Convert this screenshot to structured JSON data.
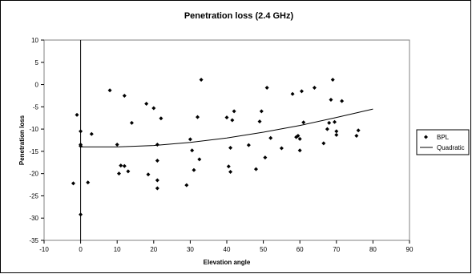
{
  "chart_data": {
    "type": "scatter",
    "title": "Penetration loss (2.4 GHz)",
    "xlabel": "Elevation angle",
    "ylabel": "Penetration loss",
    "xlim": [
      -10,
      90
    ],
    "ylim": [
      -35,
      10
    ],
    "xticks": [
      -10,
      0,
      10,
      20,
      30,
      40,
      50,
      60,
      70,
      80,
      90
    ],
    "yticks": [
      -35,
      -30,
      -25,
      -20,
      -15,
      -10,
      -5,
      0,
      5,
      10
    ],
    "grid": false,
    "legend_position": "right",
    "series": [
      {
        "name": "BPL",
        "kind": "markers",
        "color": "#000000",
        "points": [
          [
            -2,
            -22.2
          ],
          [
            -1,
            -6.8
          ],
          [
            0,
            -10.5
          ],
          [
            0,
            -13.5
          ],
          [
            0,
            -13.8
          ],
          [
            0,
            -29.2
          ],
          [
            2,
            -22
          ],
          [
            3,
            -11.1
          ],
          [
            8,
            -1.3
          ],
          [
            10,
            -13.5
          ],
          [
            10.5,
            -20
          ],
          [
            11,
            -18.2
          ],
          [
            12,
            -2.5
          ],
          [
            12,
            -18.3
          ],
          [
            13,
            -19.5
          ],
          [
            14,
            -8.6
          ],
          [
            18,
            -4.3
          ],
          [
            18.5,
            -20.2
          ],
          [
            20,
            -5.3
          ],
          [
            21,
            -13.5
          ],
          [
            21,
            -17.1
          ],
          [
            21,
            -21.5
          ],
          [
            21,
            -23.3
          ],
          [
            22,
            -7.6
          ],
          [
            29,
            -22.6
          ],
          [
            30,
            -12.3
          ],
          [
            30.5,
            -14.8
          ],
          [
            31,
            -19.2
          ],
          [
            32,
            -7.3
          ],
          [
            32.5,
            -16.8
          ],
          [
            33,
            1.1
          ],
          [
            40,
            -7.4
          ],
          [
            40.5,
            -18.4
          ],
          [
            41,
            -14.2
          ],
          [
            41,
            -19.6
          ],
          [
            41.5,
            -8
          ],
          [
            42,
            -6
          ],
          [
            46,
            -13.6
          ],
          [
            48,
            -19
          ],
          [
            49,
            -8.3
          ],
          [
            49.5,
            -6
          ],
          [
            50.5,
            -16.4
          ],
          [
            51,
            -0.7
          ],
          [
            52,
            -12
          ],
          [
            55,
            -14.3
          ],
          [
            58,
            -2.1
          ],
          [
            59,
            -11.8
          ],
          [
            59.5,
            -11.5
          ],
          [
            60,
            -14.8
          ],
          [
            60,
            -12.2
          ],
          [
            60.5,
            -1.5
          ],
          [
            61,
            -8.5
          ],
          [
            64,
            -0.7
          ],
          [
            66.5,
            -13.2
          ],
          [
            67.5,
            -10
          ],
          [
            68,
            -8.6
          ],
          [
            68.5,
            -3.4
          ],
          [
            69,
            1.1
          ],
          [
            69.5,
            -8.4
          ],
          [
            70,
            -10.5
          ],
          [
            70,
            -11.3
          ],
          [
            71.5,
            -3.7
          ],
          [
            75.5,
            -11.5
          ],
          [
            76,
            -10.3
          ]
        ]
      },
      {
        "name": "Quadratic",
        "kind": "line",
        "color": "#000000",
        "x": [
          0,
          10,
          20,
          30,
          40,
          50,
          60,
          70,
          80
        ],
        "y": [
          -14,
          -14,
          -13.7,
          -13,
          -12,
          -10.7,
          -9.2,
          -7.4,
          -5.5
        ]
      }
    ]
  }
}
